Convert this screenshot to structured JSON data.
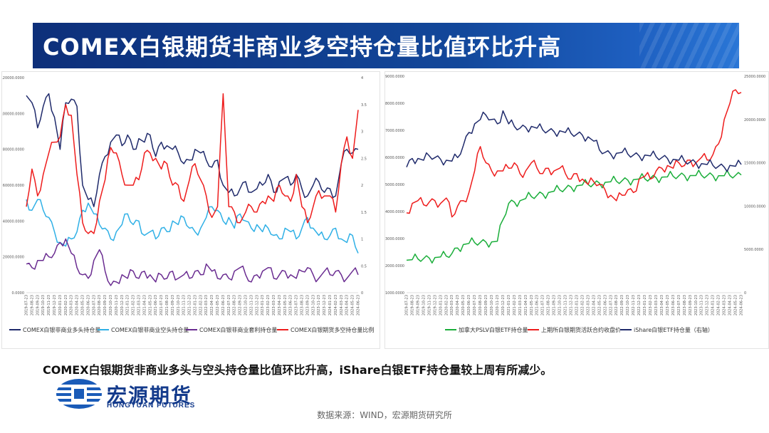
{
  "title": "COMEX白银期货非商业多空持仓量比值环比升高",
  "summary": "COMEX白银期货非商业多头与空头持仓量比值环比升高，iShare白银ETF持仓量较上周有所减少。",
  "logo": {
    "cn": "宏源期货",
    "en": "HONGYUAN FUTURES"
  },
  "source": "数据来源：WIND，宏源期货研究所",
  "colors": {
    "navy": "#1f2a6b",
    "cyan": "#2fb0e6",
    "purple": "#6a2c91",
    "red": "#ee1c1c",
    "green": "#1aae3a"
  },
  "chart_data": [
    {
      "type": "line",
      "title": "",
      "ylim_left": [
        0,
        120000
      ],
      "ylim_right": [
        0,
        4
      ],
      "y_ticks_left": [
        "0.0000",
        "20000.0000",
        "40000.0000",
        "60000.0000",
        "80000.0000",
        "100000.0000",
        "120000.0000"
      ],
      "y_ticks_right": [
        "0",
        "0.5",
        "1",
        "1.5",
        "2",
        "2.5",
        "3",
        "3.5",
        "4"
      ],
      "x_ticks": [
        "2019-07-23",
        "2019-08-23",
        "2019-09-23",
        "2019-10-23",
        "2019-11-23",
        "2019-12-23",
        "2020-01-23",
        "2020-02-23",
        "2020-03-23",
        "2020-04-23",
        "2020-05-23",
        "2020-06-23",
        "2020-07-23",
        "2020-08-23",
        "2020-09-23",
        "2020-10-23",
        "2020-11-23",
        "2020-12-23",
        "2021-01-23",
        "2021-02-23",
        "2021-03-23",
        "2021-04-23",
        "2021-05-23",
        "2021-06-23",
        "2021-07-23",
        "2021-08-23",
        "2021-09-23",
        "2021-10-23",
        "2021-11-23",
        "2021-12-23",
        "2022-01-23",
        "2022-02-23",
        "2022-03-23",
        "2022-04-23",
        "2022-05-23",
        "2022-06-23",
        "2022-07-23",
        "2022-08-23",
        "2022-09-23",
        "2022-10-23",
        "2022-11-23",
        "2022-12-23",
        "2023-01-23",
        "2023-02-23",
        "2023-03-23",
        "2023-04-23",
        "2023-05-23",
        "2023-06-23",
        "2023-07-23",
        "2023-08-23",
        "2023-09-23",
        "2023-10-23",
        "2023-11-23",
        "2023-12-23",
        "2024-01-23",
        "2024-02-23",
        "2024-03-23",
        "2024-04-23",
        "2024-05-23",
        "2024-06-23"
      ],
      "series": [
        {
          "name": "COMEX白银非商业多头持仓量",
          "axis": "left",
          "color": "#1f2a6b",
          "values": [
            110000,
            106000,
            92000,
            104000,
            111000,
            98000,
            80000,
            106000,
            108000,
            104000,
            60000,
            52000,
            48000,
            66000,
            76000,
            84000,
            88000,
            82000,
            88000,
            80000,
            86000,
            84000,
            88000,
            76000,
            84000,
            82000,
            80000,
            78000,
            72000,
            74000,
            80000,
            78000,
            74000,
            70000,
            74000,
            60000,
            56000,
            54000,
            58000,
            62000,
            56000,
            58000,
            60000,
            66000,
            56000,
            62000,
            64000,
            60000,
            66000,
            58000,
            54000,
            60000,
            62000,
            56000,
            58000,
            54000,
            72000,
            80000,
            78000,
            80000
          ]
        },
        {
          "name": "COMEX白银非商业空头持仓量",
          "axis": "left",
          "color": "#2fb0e6",
          "values": [
            52000,
            46000,
            52000,
            46000,
            42000,
            34000,
            28000,
            26000,
            30000,
            34000,
            46000,
            50000,
            44000,
            38000,
            36000,
            30000,
            34000,
            38000,
            44000,
            38000,
            40000,
            32000,
            34000,
            30000,
            36000,
            34000,
            40000,
            38000,
            42000,
            36000,
            34000,
            36000,
            42000,
            48000,
            46000,
            40000,
            42000,
            36000,
            44000,
            40000,
            36000,
            38000,
            34000,
            36000,
            32000,
            30000,
            36000,
            34000,
            30000,
            36000,
            42000,
            36000,
            32000,
            30000,
            32000,
            36000,
            30000,
            28000,
            32000,
            22000
          ]
        },
        {
          "name": "COMEX白银非商业套利持仓量",
          "axis": "left",
          "color": "#6a2c91",
          "values": [
            16000,
            14000,
            18000,
            18000,
            20000,
            22000,
            28000,
            30000,
            22000,
            14000,
            10000,
            8000,
            18000,
            24000,
            12000,
            4000,
            6000,
            10000,
            8000,
            12000,
            8000,
            12000,
            10000,
            6000,
            10000,
            8000,
            12000,
            8000,
            10000,
            8000,
            12000,
            10000,
            16000,
            12000,
            8000,
            10000,
            8000,
            12000,
            14000,
            10000,
            6000,
            10000,
            12000,
            14000,
            8000,
            10000,
            12000,
            10000,
            8000,
            12000,
            14000,
            10000,
            8000,
            12000,
            10000,
            12000,
            10000,
            8000,
            12000,
            10000
          ]
        },
        {
          "name": "COMEX白银期货多空持仓量比例",
          "axis": "right",
          "color": "#ee1c1c",
          "values": [
            1.6,
            2.3,
            1.8,
            2.2,
            2.6,
            2.8,
            2.9,
            3.5,
            3.3,
            2.2,
            1.3,
            1.1,
            1.1,
            1.7,
            2.1,
            2.7,
            2.6,
            2.2,
            2.0,
            2.0,
            2.1,
            2.6,
            2.6,
            2.5,
            2.3,
            2.4,
            2.0,
            2.0,
            1.7,
            2.1,
            2.4,
            2.1,
            1.8,
            1.4,
            1.6,
            3.7,
            1.6,
            1.5,
            1.3,
            1.5,
            1.6,
            1.5,
            1.7,
            1.8,
            1.7,
            2.0,
            1.8,
            1.7,
            2.2,
            1.6,
            1.3,
            1.6,
            1.9,
            1.8,
            1.8,
            1.5,
            2.4,
            2.9,
            2.5,
            3.4
          ]
        }
      ]
    },
    {
      "type": "line",
      "title": "",
      "ylim_left": [
        1000,
        9000
      ],
      "ylim_right": [
        0,
        25000
      ],
      "y_ticks_left": [
        "1000.0000",
        "2000.0000",
        "3000.0000",
        "4000.0000",
        "5000.0000",
        "6000.0000",
        "7000.0000",
        "8000.0000",
        "9000.0000"
      ],
      "y_ticks_right": [
        "0",
        "5000.0000",
        "10000.0000",
        "15000.0000",
        "20000.0000",
        "25000.0000"
      ],
      "x_ticks": [
        "2019-07-23",
        "2019-08-23",
        "2019-09-23",
        "2019-10-23",
        "2019-11-23",
        "2019-12-23",
        "2020-01-23",
        "2020-02-23",
        "2020-03-23",
        "2020-04-23",
        "2020-05-23",
        "2020-06-23",
        "2020-07-23",
        "2020-08-23",
        "2020-09-23",
        "2020-10-23",
        "2020-11-23",
        "2020-12-23",
        "2021-01-23",
        "2021-02-23",
        "2021-03-23",
        "2021-04-23",
        "2021-05-23",
        "2021-06-23",
        "2021-07-23",
        "2021-08-23",
        "2021-09-23",
        "2021-10-23",
        "2021-11-23",
        "2021-12-23",
        "2022-01-23",
        "2022-02-23",
        "2022-03-23",
        "2022-04-23",
        "2022-05-23",
        "2022-06-23",
        "2022-07-23",
        "2022-08-23",
        "2022-09-23",
        "2022-10-23",
        "2022-11-23",
        "2022-12-23",
        "2023-01-23",
        "2023-02-23",
        "2023-03-23",
        "2023-04-23",
        "2023-05-23",
        "2023-06-23",
        "2023-07-23",
        "2023-08-23",
        "2023-09-23",
        "2023-10-23",
        "2023-11-23",
        "2023-12-23",
        "2024-01-23",
        "2024-02-23",
        "2024-03-23",
        "2024-04-23",
        "2024-05-23",
        "2024-06-23"
      ],
      "series": [
        {
          "name": "加拿大PSLV白银ETF持仓量",
          "axis": "left",
          "color": "#1aae3a",
          "values": [
            2200,
            2220,
            2250,
            2260,
            2280,
            2300,
            2320,
            2350,
            2450,
            2650,
            2780,
            2820,
            2850,
            2860,
            2870,
            2880,
            2900,
            3700,
            4300,
            4350,
            4400,
            4480,
            4550,
            4600,
            4650,
            4700,
            4750,
            4800,
            4850,
            4900,
            4950,
            4980,
            5000,
            5020,
            5050,
            5080,
            5100,
            5120,
            5140,
            5160,
            5180,
            5200,
            5210,
            5230,
            5250,
            5270,
            5280,
            5300,
            5320,
            5330,
            5330,
            5330,
            5340,
            5330,
            5330,
            5320,
            5320,
            5330,
            5340,
            5350
          ]
        },
        {
          "name": "上期所白银期货活跃合约收盘价",
          "axis": "left",
          "color": "#ee1c1c",
          "values": [
            3950,
            4300,
            4400,
            4250,
            4350,
            4400,
            4300,
            4500,
            3800,
            4200,
            4400,
            4700,
            5500,
            6400,
            5800,
            5500,
            5500,
            5500,
            5600,
            5800,
            5400,
            5500,
            5800,
            5600,
            5400,
            5600,
            5500,
            5600,
            5400,
            5200,
            5400,
            5200,
            5000,
            5100,
            5000,
            4800,
            4600,
            4400,
            4600,
            4800,
            4700,
            5200,
            5300,
            5200,
            5500,
            5600,
            5700,
            5600,
            5800,
            5700,
            5900,
            5800,
            6000,
            5900,
            6100,
            6500,
            7400,
            8000,
            8500,
            8400
          ]
        },
        {
          "name": "iShare白银ETF持仓量（右轴）",
          "axis": "right",
          "color": "#1f2a6b",
          "values": [
            14500,
            15500,
            15500,
            15300,
            15800,
            15600,
            15400,
            15300,
            15200,
            15600,
            17000,
            18500,
            19500,
            20000,
            20500,
            20000,
            19500,
            21000,
            19500,
            19200,
            19000,
            19100,
            19200,
            19000,
            18800,
            18700,
            18600,
            18700,
            18500,
            18400,
            18300,
            18200,
            18000,
            17500,
            16500,
            16200,
            16000,
            16100,
            16200,
            16000,
            15900,
            15800,
            15900,
            15800,
            15700,
            15600,
            15500,
            15400,
            15300,
            15200,
            15100,
            15000,
            14900,
            14800,
            14700,
            14600,
            14500,
            14700,
            14600,
            14800
          ]
        }
      ]
    }
  ]
}
